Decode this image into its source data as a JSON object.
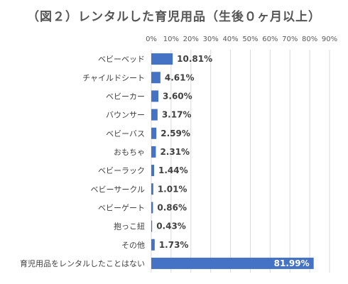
{
  "chart_data": {
    "type": "bar",
    "orientation": "horizontal",
    "title": "（図２）レンタルした育児用品（生後０ヶ月以上）",
    "categories": [
      "ベビーベッド",
      "チャイルドシート",
      "ベビーカー",
      "バウンサー",
      "ベビーバス",
      "おもちゃ",
      "ベビーラック",
      "ベビーサークル",
      "ベビーゲート",
      "抱っこ紐",
      "その他",
      "育児用品をレンタルしたことはない"
    ],
    "values": [
      10.81,
      4.61,
      3.6,
      3.17,
      2.59,
      2.31,
      1.44,
      1.01,
      0.86,
      0.43,
      1.73,
      81.99
    ],
    "value_labels": [
      "10.81%",
      "4.61%",
      "3.60%",
      "3.17%",
      "2.59%",
      "2.31%",
      "1.44%",
      "1.01%",
      "0.86%",
      "0.43%",
      "1.73%",
      "81.99%"
    ],
    "xlim": [
      0,
      90
    ],
    "x_ticks": [
      0,
      10,
      20,
      30,
      40,
      50,
      60,
      70,
      80,
      90
    ],
    "x_tick_labels": [
      "0%",
      "10%",
      "20%",
      "30%",
      "40%",
      "50%",
      "60%",
      "70%",
      "80%",
      "90%"
    ],
    "xlabel": "",
    "ylabel": "",
    "grid": true,
    "legend": "none",
    "bar_color": "#4472C4",
    "grid_color": "#D9D9D9"
  }
}
